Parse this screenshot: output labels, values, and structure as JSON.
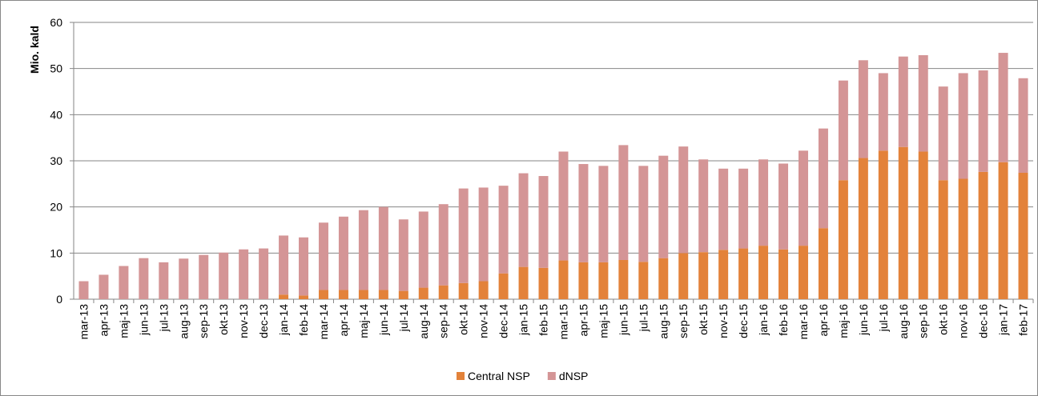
{
  "chart_data": {
    "type": "stacked-bar",
    "y_label": "Mio. kald",
    "categories": [
      "mar-13",
      "apr-13",
      "maj-13",
      "jun-13",
      "jul-13",
      "aug-13",
      "sep-13",
      "okt-13",
      "nov-13",
      "dec-13",
      "jan-14",
      "feb-14",
      "mar-14",
      "apr-14",
      "maj-14",
      "jun-14",
      "jul-14",
      "aug-14",
      "sep-14",
      "okt-14",
      "nov-14",
      "dec-14",
      "jan-15",
      "feb-15",
      "mar-15",
      "apr-15",
      "maj-15",
      "jun-15",
      "jul-15",
      "aug-15",
      "sep-15",
      "okt-15",
      "nov-15",
      "dec-15",
      "jan-16",
      "feb-16",
      "mar-16",
      "apr-16",
      "maj-16",
      "jun-16",
      "jul-16",
      "aug-16",
      "sep-16",
      "okt-16",
      "nov-16",
      "dec-16",
      "jan-17",
      "feb-17"
    ],
    "series": [
      {
        "name": "Central NSP",
        "color": "#e3823a",
        "values": [
          0,
          0,
          0,
          0,
          0,
          0,
          0,
          0,
          0,
          0,
          1.0,
          0.8,
          2.0,
          2.0,
          2.0,
          2.0,
          1.8,
          2.5,
          3.0,
          3.5,
          3.9,
          5.6,
          7.0,
          6.8,
          8.4,
          8.0,
          8.0,
          8.5,
          8.1,
          8.9,
          10.0,
          10.2,
          10.7,
          11.0,
          11.6,
          10.8,
          11.6,
          15.4,
          25.8,
          30.6,
          32.2,
          33.0,
          32.0,
          25.8,
          26.1,
          27.6,
          29.7,
          27.4
        ]
      },
      {
        "name": "dNSP",
        "color": "#d49596",
        "values": [
          3.9,
          5.3,
          7.2,
          8.9,
          8.0,
          8.8,
          9.6,
          10.1,
          10.8,
          11.0,
          12.8,
          12.6,
          14.6,
          15.9,
          17.3,
          18.0,
          15.5,
          16.5,
          17.6,
          20.5,
          20.3,
          19.0,
          20.3,
          19.9,
          23.6,
          21.3,
          20.9,
          24.9,
          20.8,
          22.2,
          23.1,
          20.1,
          17.6,
          17.3,
          18.7,
          18.6,
          20.6,
          21.6,
          21.6,
          21.2,
          16.8,
          19.6,
          20.9,
          20.3,
          22.9,
          22.0,
          23.7,
          20.5
        ]
      }
    ],
    "ylim": [
      0,
      60
    ],
    "yticks": [
      0,
      10,
      20,
      30,
      40,
      50,
      60
    ],
    "grid": true,
    "legend": "bottom"
  }
}
